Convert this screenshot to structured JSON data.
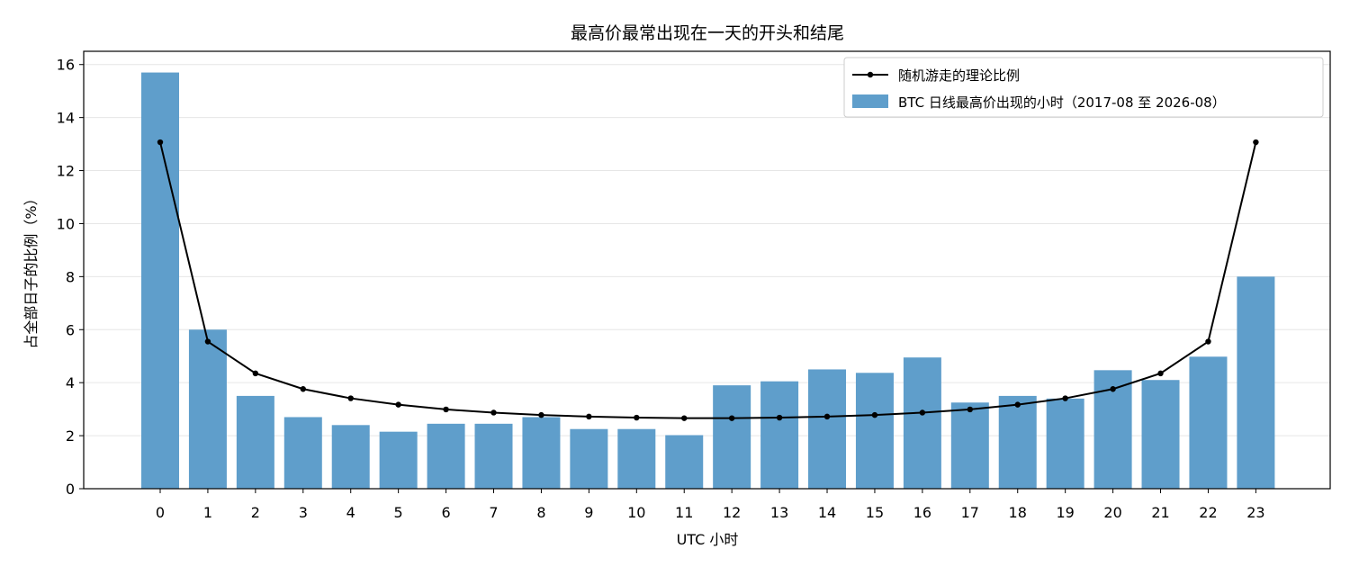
{
  "chart_data": {
    "type": "bar",
    "title": "最高价最常出现在一天的开头和结尾",
    "xlabel": "UTC 小时",
    "ylabel": "占全部日子的比例（%）",
    "categories": [
      "0",
      "1",
      "2",
      "3",
      "4",
      "5",
      "6",
      "7",
      "8",
      "9",
      "10",
      "11",
      "12",
      "13",
      "14",
      "15",
      "16",
      "17",
      "18",
      "19",
      "20",
      "21",
      "22",
      "23"
    ],
    "ylim": [
      0,
      16.5
    ],
    "yticks": [
      0,
      2,
      4,
      6,
      8,
      10,
      12,
      14,
      16
    ],
    "grid": "y",
    "legend_position": "top-right",
    "series": [
      {
        "name": "BTC 日线最高价出现的小时（2017-08 至 2026-08）",
        "kind": "bar",
        "color": "#5f9ecb",
        "values": [
          15.7,
          6.0,
          3.5,
          2.7,
          2.4,
          2.15,
          2.45,
          2.45,
          2.7,
          2.25,
          2.25,
          2.02,
          3.9,
          4.05,
          4.5,
          4.37,
          4.95,
          3.25,
          3.5,
          3.4,
          4.47,
          4.1,
          4.98,
          8.0
        ]
      },
      {
        "name": "随机游走的理论比例",
        "kind": "line",
        "color": "#000000",
        "values": [
          13.07,
          5.55,
          4.35,
          3.76,
          3.41,
          3.17,
          2.99,
          2.87,
          2.78,
          2.72,
          2.68,
          2.66,
          2.66,
          2.68,
          2.72,
          2.78,
          2.87,
          2.99,
          3.17,
          3.41,
          3.76,
          4.35,
          5.55,
          13.07
        ]
      }
    ]
  }
}
